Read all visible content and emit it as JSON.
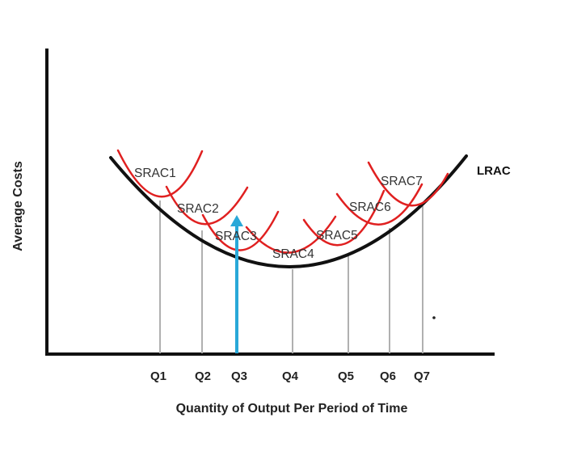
{
  "diagram": {
    "y_axis_label": "Average Costs",
    "x_axis_label": "Quantity of Output Per Period of Time",
    "curve_label": "LRAC",
    "short_run_labels": [
      "SRAC1",
      "SRAC2",
      "SRAC3",
      "SRAC4",
      "SRAC5",
      "SRAC6",
      "SRAC7"
    ],
    "output_levels": [
      "Q1",
      "Q2",
      "Q3",
      "Q4",
      "Q5",
      "Q6",
      "Q7"
    ],
    "colors": {
      "lrac": "#111111",
      "srac": "#e02020",
      "guides": "#b0b0b0",
      "arrow": "#29a8d8",
      "axes": "#111111"
    }
  }
}
